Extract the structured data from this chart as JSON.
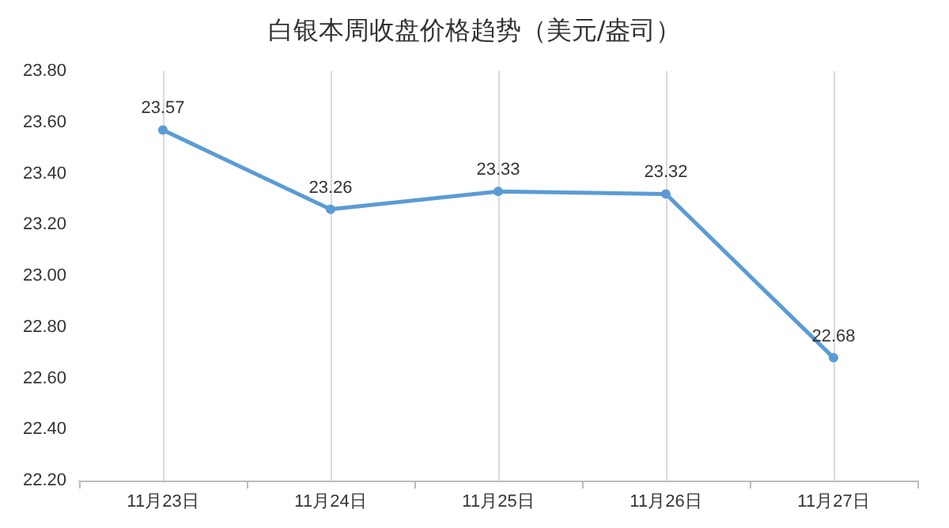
{
  "chart_data": {
    "type": "line",
    "title": "白银本周收盘价格趋势（美元/盎司）",
    "categories": [
      "11月23日",
      "11月24日",
      "11月25日",
      "11月26日",
      "11月27日"
    ],
    "series": [
      {
        "color": "#5b9bd5",
        "values": [
          23.57,
          23.26,
          23.33,
          23.32,
          22.68
        ]
      }
    ],
    "ylim": [
      22.2,
      23.8
    ],
    "yticks": [
      {
        "value": 22.2,
        "label": "22.20"
      },
      {
        "value": 22.4,
        "label": "22.40"
      },
      {
        "value": 22.6,
        "label": "22.60"
      },
      {
        "value": 22.8,
        "label": "22.80"
      },
      {
        "value": 23.0,
        "label": "23.00"
      },
      {
        "value": 23.2,
        "label": "23.20"
      },
      {
        "value": 23.4,
        "label": "23.40"
      },
      {
        "value": 23.6,
        "label": "23.60"
      },
      {
        "value": 23.8,
        "label": "23.80"
      }
    ],
    "grid": "x",
    "marker": "circle",
    "line_style": "solid",
    "data_labels": true
  }
}
